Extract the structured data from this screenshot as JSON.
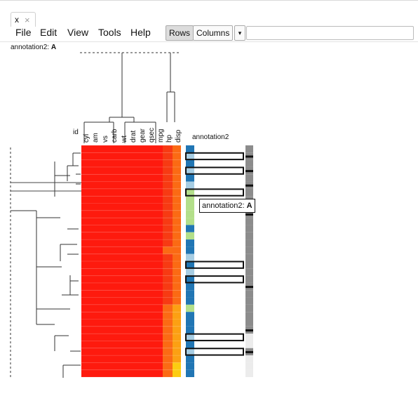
{
  "tab": {
    "label": "x",
    "close": "×"
  },
  "menu": [
    "File",
    "Edit",
    "View",
    "Tools",
    "Help"
  ],
  "toolbar": {
    "rows_label": "Rows",
    "columns_label": "Columns",
    "dropdown_glyph": "▾",
    "search_value": "",
    "search_placeholder": ""
  },
  "info_label": {
    "prefix": "annotation2: ",
    "value": "A"
  },
  "columns": [
    "id",
    "cyl",
    "am",
    "vs",
    "carb",
    "wt",
    "drat",
    "gear",
    "qsec",
    "mpg",
    "hp",
    "disp"
  ],
  "annotation_header": "annotation2",
  "tooltip": {
    "prefix": "annotation2: ",
    "value": "A"
  },
  "heatmap": {
    "num_rows": 32,
    "colors": {
      "red": "#fe1a0e",
      "redorange": "#f73a13",
      "orange": "#fb6a14",
      "amber": "#fca013",
      "gold": "#fccc12"
    },
    "hp_col": [
      "r",
      "r",
      "r",
      "r",
      "r",
      "r",
      "r",
      "r",
      "r",
      "r",
      "r",
      "r",
      "r",
      "r",
      "o",
      "r",
      "r",
      "r",
      "r",
      "r",
      "r",
      "r",
      "o",
      "o",
      "o",
      "o",
      "o",
      "o",
      "o",
      "o",
      "o",
      "o"
    ],
    "disp_col": [
      "o",
      "o",
      "o",
      "o",
      "o",
      "o",
      "o",
      "o",
      "o",
      "o",
      "o",
      "o",
      "o",
      "o",
      "o",
      "o",
      "o",
      "o",
      "o",
      "o",
      "o",
      "o",
      "a",
      "a",
      "a",
      "a",
      "a",
      "a",
      "a",
      "a",
      "g",
      "g"
    ]
  },
  "annotation": {
    "col1": [
      "b",
      "lb",
      "b",
      "lb",
      "b",
      "lb",
      "g",
      "g",
      "g",
      "g",
      "g",
      "b",
      "g",
      "b",
      "b",
      "lb",
      "b",
      "lb",
      "b",
      "b",
      "b",
      "b",
      "g",
      "b",
      "b",
      "b",
      "lb",
      "b",
      "lb",
      "b",
      "b",
      "b"
    ],
    "highlighted_rows": [
      1,
      3,
      6,
      16,
      18,
      26,
      28
    ],
    "col2": [
      "d",
      "k",
      "d",
      "k",
      "d",
      "k",
      "d",
      "d",
      "d",
      "k",
      "d",
      "d",
      "d",
      "d",
      "d",
      "d",
      "d",
      "d",
      "d",
      "k",
      "d",
      "d",
      "d",
      "d",
      "d",
      "k",
      "l",
      "l",
      "k",
      "l",
      "l",
      "l"
    ],
    "colors": {
      "b": "#2176b4",
      "lb": "#a7cde3",
      "g": "#b3df8a",
      "d": "#8c8c8c",
      "l": "#ececec",
      "k": "#111111"
    }
  }
}
